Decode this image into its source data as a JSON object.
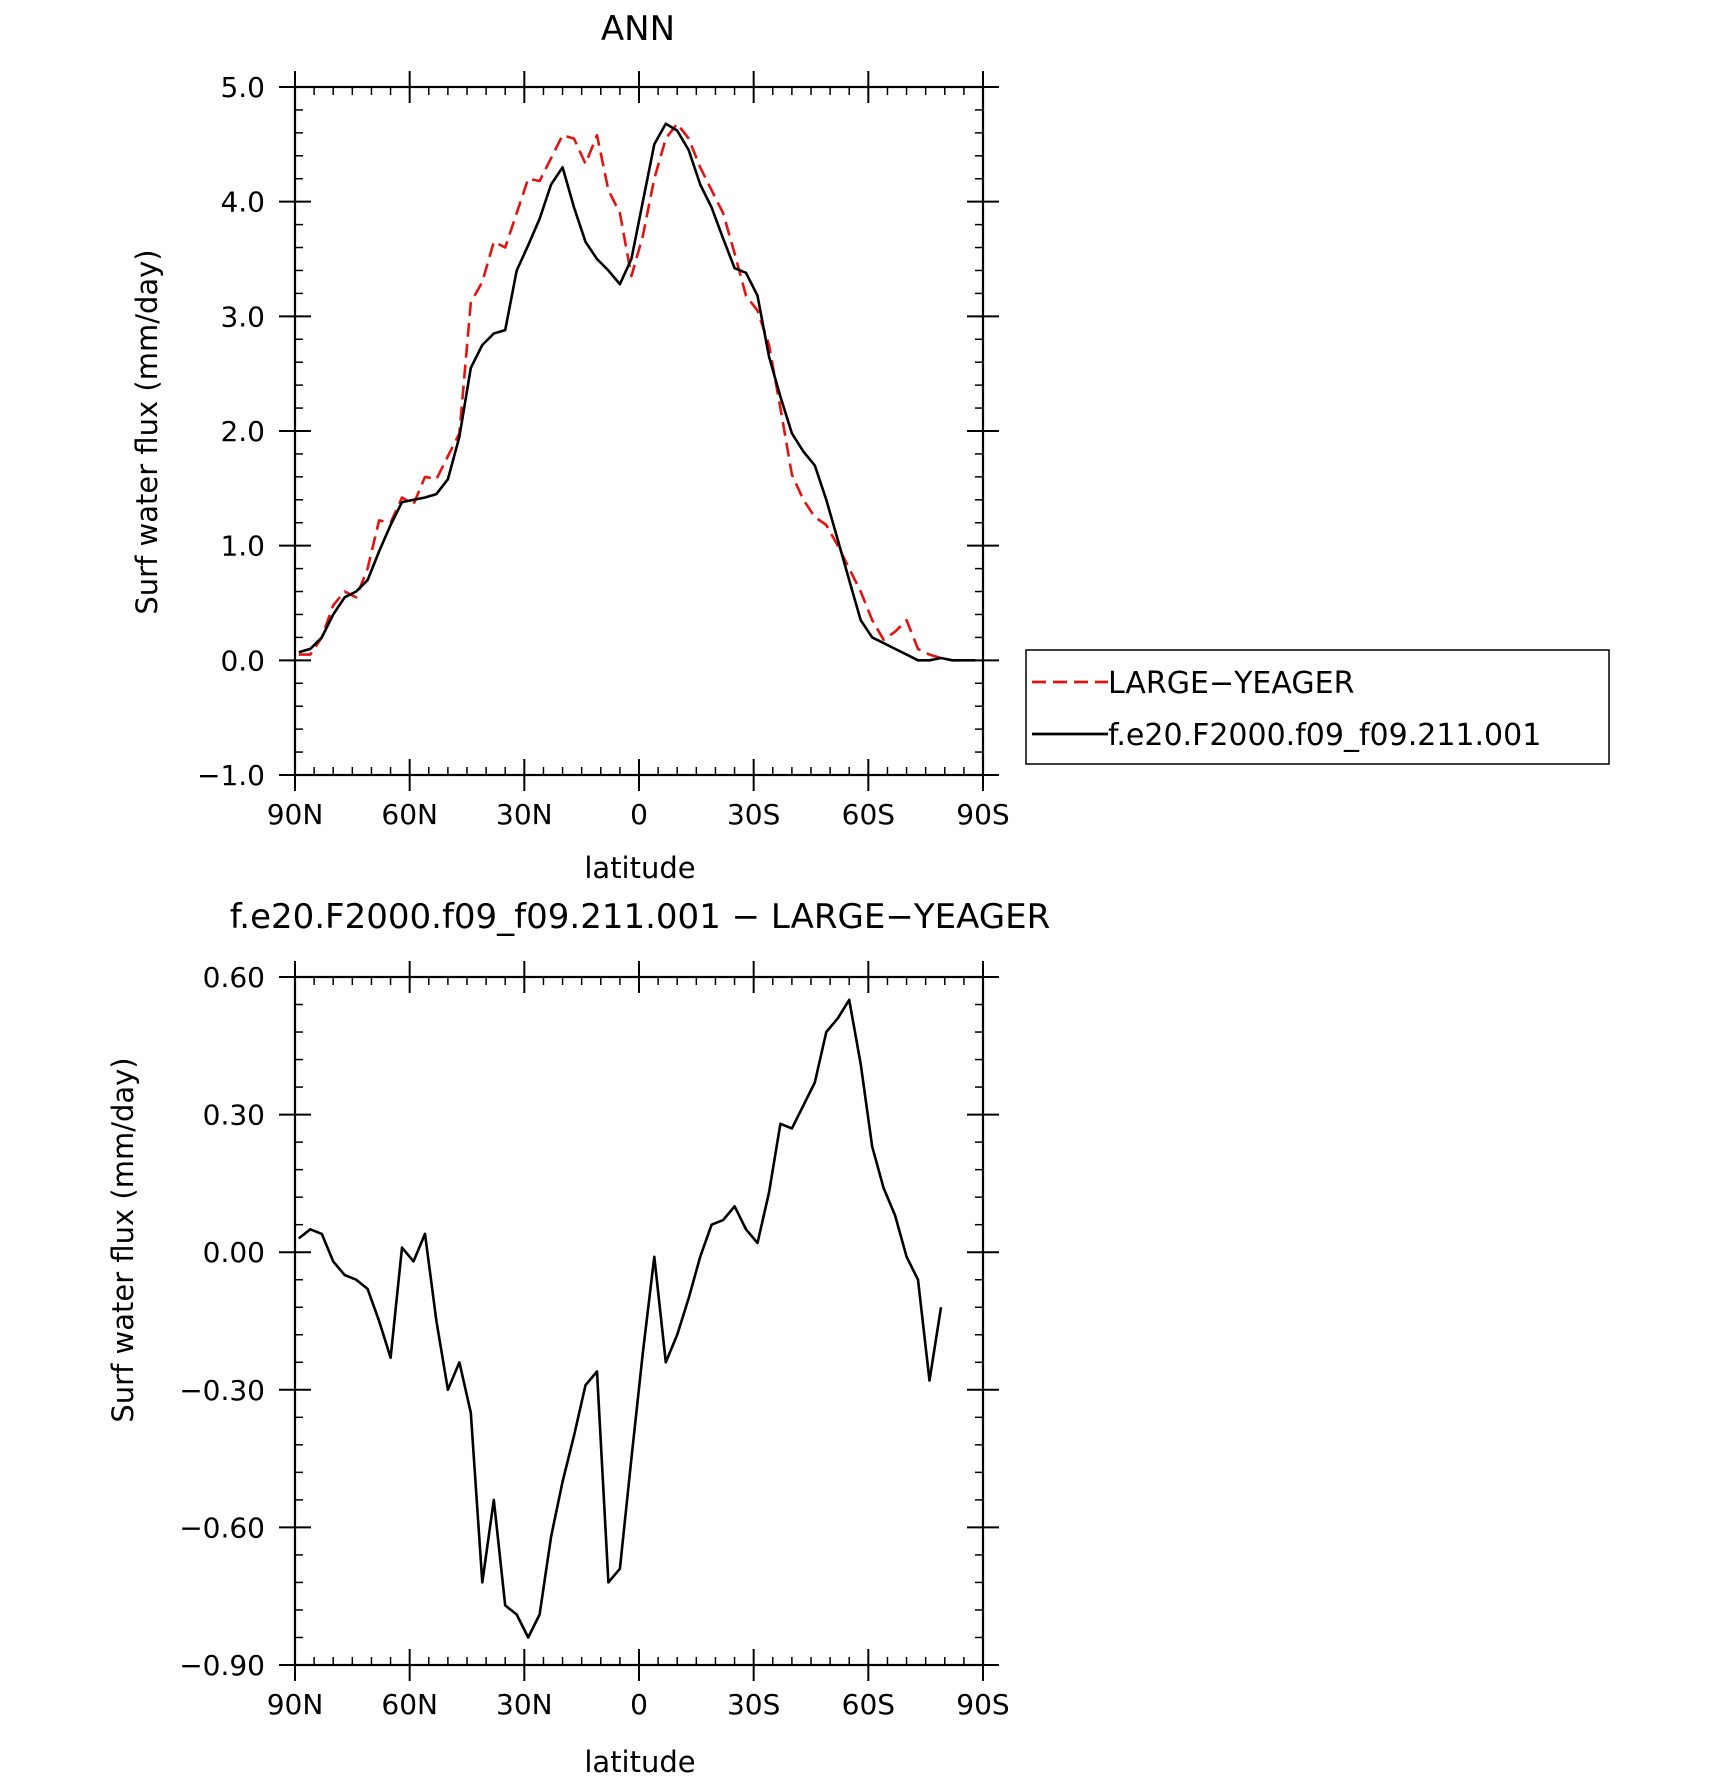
{
  "chart_data": [
    {
      "type": "line",
      "title": "ANN",
      "xlabel": "latitude",
      "ylabel": "Surf water flux (mm/day)",
      "xlim": [
        90,
        -90
      ],
      "ylim": [
        -1.0,
        5.0
      ],
      "x_ticks": [
        {
          "value": 90,
          "label": "90N"
        },
        {
          "value": 60,
          "label": "60N"
        },
        {
          "value": 30,
          "label": "30N"
        },
        {
          "value": 0,
          "label": "0"
        },
        {
          "value": -30,
          "label": "30S"
        },
        {
          "value": -60,
          "label": "60S"
        },
        {
          "value": -90,
          "label": "90S"
        }
      ],
      "y_ticks": [
        {
          "value": 5.0,
          "label": "5.0"
        },
        {
          "value": 4.0,
          "label": "4.0"
        },
        {
          "value": 3.0,
          "label": "3.0"
        },
        {
          "value": 2.0,
          "label": "2.0"
        },
        {
          "value": 1.0,
          "label": "1.0"
        },
        {
          "value": 0.0,
          "label": "0.0"
        },
        {
          "value": -1.0,
          "label": "−1.0"
        }
      ],
      "legend_position": "right",
      "series": [
        {
          "name": "LARGE−YEAGER",
          "color": "#e3130f",
          "dash": "dashed",
          "x": [
            89,
            86,
            83,
            80,
            77,
            74,
            71,
            68,
            65,
            62,
            59,
            56,
            53,
            50,
            47,
            44,
            41,
            38,
            35,
            32,
            29,
            26,
            23,
            20,
            17,
            14,
            11,
            8,
            5,
            2,
            -1,
            -4,
            -7,
            -10,
            -13,
            -16,
            -19,
            -22,
            -25,
            -28,
            -31,
            -34,
            -37,
            -40,
            -43,
            -46,
            -49,
            -52,
            -55,
            -58,
            -61,
            -64,
            -67,
            -70,
            -73,
            -76,
            -79
          ],
          "y": [
            0.05,
            0.05,
            0.2,
            0.48,
            0.6,
            0.55,
            0.8,
            1.22,
            1.2,
            1.42,
            1.36,
            1.6,
            1.58,
            1.78,
            1.98,
            3.12,
            3.3,
            3.65,
            3.6,
            3.9,
            4.2,
            4.18,
            4.38,
            4.58,
            4.55,
            4.33,
            4.58,
            4.1,
            3.9,
            3.35,
            3.7,
            4.2,
            4.55,
            4.68,
            4.55,
            4.3,
            4.1,
            3.9,
            3.55,
            3.18,
            3.05,
            2.75,
            2.2,
            1.62,
            1.4,
            1.25,
            1.18,
            1.0,
            0.8,
            0.6,
            0.35,
            0.18,
            0.25,
            0.35,
            0.1,
            0.05,
            0.02
          ]
        },
        {
          "name": "f.e20.F2000.f09_f09.211.001",
          "color": "#000000",
          "dash": "solid",
          "x": [
            89,
            86,
            83,
            80,
            77,
            74,
            71,
            68,
            65,
            62,
            59,
            56,
            53,
            50,
            47,
            44,
            41,
            38,
            35,
            32,
            29,
            26,
            23,
            20,
            17,
            14,
            11,
            8,
            5,
            2,
            -1,
            -4,
            -7,
            -10,
            -13,
            -16,
            -19,
            -22,
            -25,
            -28,
            -31,
            -34,
            -37,
            -40,
            -43,
            -46,
            -49,
            -52,
            -55,
            -58,
            -61,
            -64,
            -67,
            -70,
            -73,
            -76,
            -79,
            -82,
            -85,
            -88
          ],
          "y": [
            0.07,
            0.1,
            0.2,
            0.4,
            0.55,
            0.6,
            0.7,
            0.95,
            1.18,
            1.38,
            1.4,
            1.42,
            1.45,
            1.58,
            1.95,
            2.55,
            2.75,
            2.85,
            2.88,
            3.4,
            3.62,
            3.85,
            4.15,
            4.3,
            3.95,
            3.65,
            3.5,
            3.4,
            3.28,
            3.5,
            4.0,
            4.5,
            4.68,
            4.62,
            4.45,
            4.15,
            3.95,
            3.68,
            3.42,
            3.38,
            3.18,
            2.65,
            2.3,
            1.98,
            1.82,
            1.7,
            1.4,
            1.05,
            0.7,
            0.35,
            0.2,
            0.15,
            0.1,
            0.05,
            0.0,
            0.0,
            0.02,
            0.0,
            0.0,
            0.0
          ]
        }
      ]
    },
    {
      "type": "line",
      "title": "f.e20.F2000.f09_f09.211.001 − LARGE−YEAGER",
      "xlabel": "latitude",
      "ylabel": "Surf water flux (mm/day)",
      "xlim": [
        90,
        -90
      ],
      "ylim": [
        -0.9,
        0.6
      ],
      "x_ticks": [
        {
          "value": 90,
          "label": "90N"
        },
        {
          "value": 60,
          "label": "60N"
        },
        {
          "value": 30,
          "label": "30N"
        },
        {
          "value": 0,
          "label": "0"
        },
        {
          "value": -30,
          "label": "30S"
        },
        {
          "value": -60,
          "label": "60S"
        },
        {
          "value": -90,
          "label": "90S"
        }
      ],
      "y_ticks": [
        {
          "value": 0.6,
          "label": "0.60"
        },
        {
          "value": 0.3,
          "label": "0.30"
        },
        {
          "value": 0.0,
          "label": "0.00"
        },
        {
          "value": -0.3,
          "label": "−0.30"
        },
        {
          "value": -0.6,
          "label": "−0.60"
        },
        {
          "value": -0.9,
          "label": "−0.90"
        }
      ],
      "series": [
        {
          "color": "#000000",
          "dash": "solid",
          "x": [
            89,
            86,
            83,
            80,
            77,
            74,
            71,
            68,
            65,
            62,
            59,
            56,
            53,
            50,
            47,
            44,
            41,
            38,
            35,
            32,
            29,
            26,
            23,
            20,
            17,
            14,
            11,
            8,
            5,
            2,
            -1,
            -4,
            -7,
            -10,
            -13,
            -16,
            -19,
            -22,
            -25,
            -28,
            -31,
            -34,
            -37,
            -40,
            -43,
            -46,
            -49,
            -52,
            -55,
            -58,
            -61,
            -64,
            -67,
            -70,
            -73,
            -76,
            -79
          ],
          "y": [
            0.03,
            0.05,
            0.04,
            -0.02,
            -0.05,
            -0.06,
            -0.08,
            -0.15,
            -0.23,
            0.01,
            -0.02,
            0.04,
            -0.15,
            -0.3,
            -0.24,
            -0.35,
            -0.72,
            -0.54,
            -0.77,
            -0.79,
            -0.84,
            -0.79,
            -0.62,
            -0.5,
            -0.4,
            -0.29,
            -0.26,
            -0.72,
            -0.69,
            -0.45,
            -0.22,
            -0.01,
            -0.24,
            -0.18,
            -0.1,
            -0.01,
            0.06,
            0.07,
            0.1,
            0.05,
            0.02,
            0.13,
            0.28,
            0.27,
            0.32,
            0.37,
            0.48,
            0.51,
            0.55,
            0.41,
            0.23,
            0.14,
            0.08,
            -0.01,
            -0.06,
            -0.28,
            -0.12
          ]
        }
      ]
    }
  ]
}
